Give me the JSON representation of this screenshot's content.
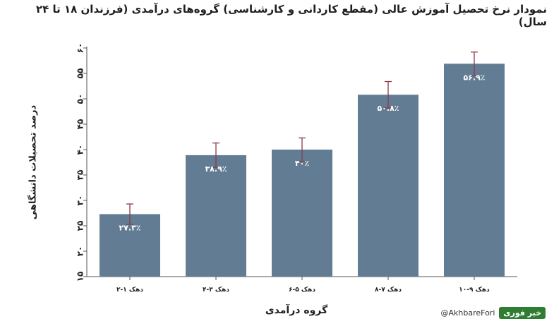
{
  "chart_data": {
    "type": "bar",
    "title": "نمودار نرخ تحصیل آموزش عالی (مقطع کاردانی و کارشناسی) گروه‌های درآمدی (فرزندان ۱۸ تا ۲۴ سال)",
    "xlabel": "گروه درآمدی",
    "ylabel": "درصد تحصیلات دانشگاهی",
    "categories": [
      "دهک ۱-۲",
      "دهک ۳-۴",
      "دهک ۵-۶",
      "دهک ۷-۸",
      "دهک ۹-۱۰"
    ],
    "values": [
      27.3,
      38.9,
      40,
      50.8,
      56.9
    ],
    "value_labels": [
      "۲۷.۳٪",
      "۳۸.۹٪",
      "۴۰٪",
      "۵۰.۸٪",
      "۵۶.۹٪"
    ],
    "error_upper": [
      29.3,
      41.3,
      42.3,
      53.4,
      59.2
    ],
    "error_lower": [
      25.3,
      36.5,
      37.7,
      48.2,
      54.6
    ],
    "ylim": [
      15,
      60
    ],
    "yticks": [
      15,
      20,
      25,
      30,
      35,
      40,
      45,
      50,
      55,
      60
    ],
    "ytick_labels": [
      "۱۵",
      "۲۰",
      "۲۵",
      "۳۰",
      "۳۵",
      "۴۰",
      "۴۵",
      "۵۰",
      "۵۵",
      "۶۰"
    ],
    "grid": false,
    "colors": {
      "bar": "#627d93",
      "error_bar": "#8b3a46",
      "axis": "#555555"
    }
  },
  "watermark": {
    "handle": "@AkhbareFori",
    "logo_text": "خبر فوری"
  }
}
